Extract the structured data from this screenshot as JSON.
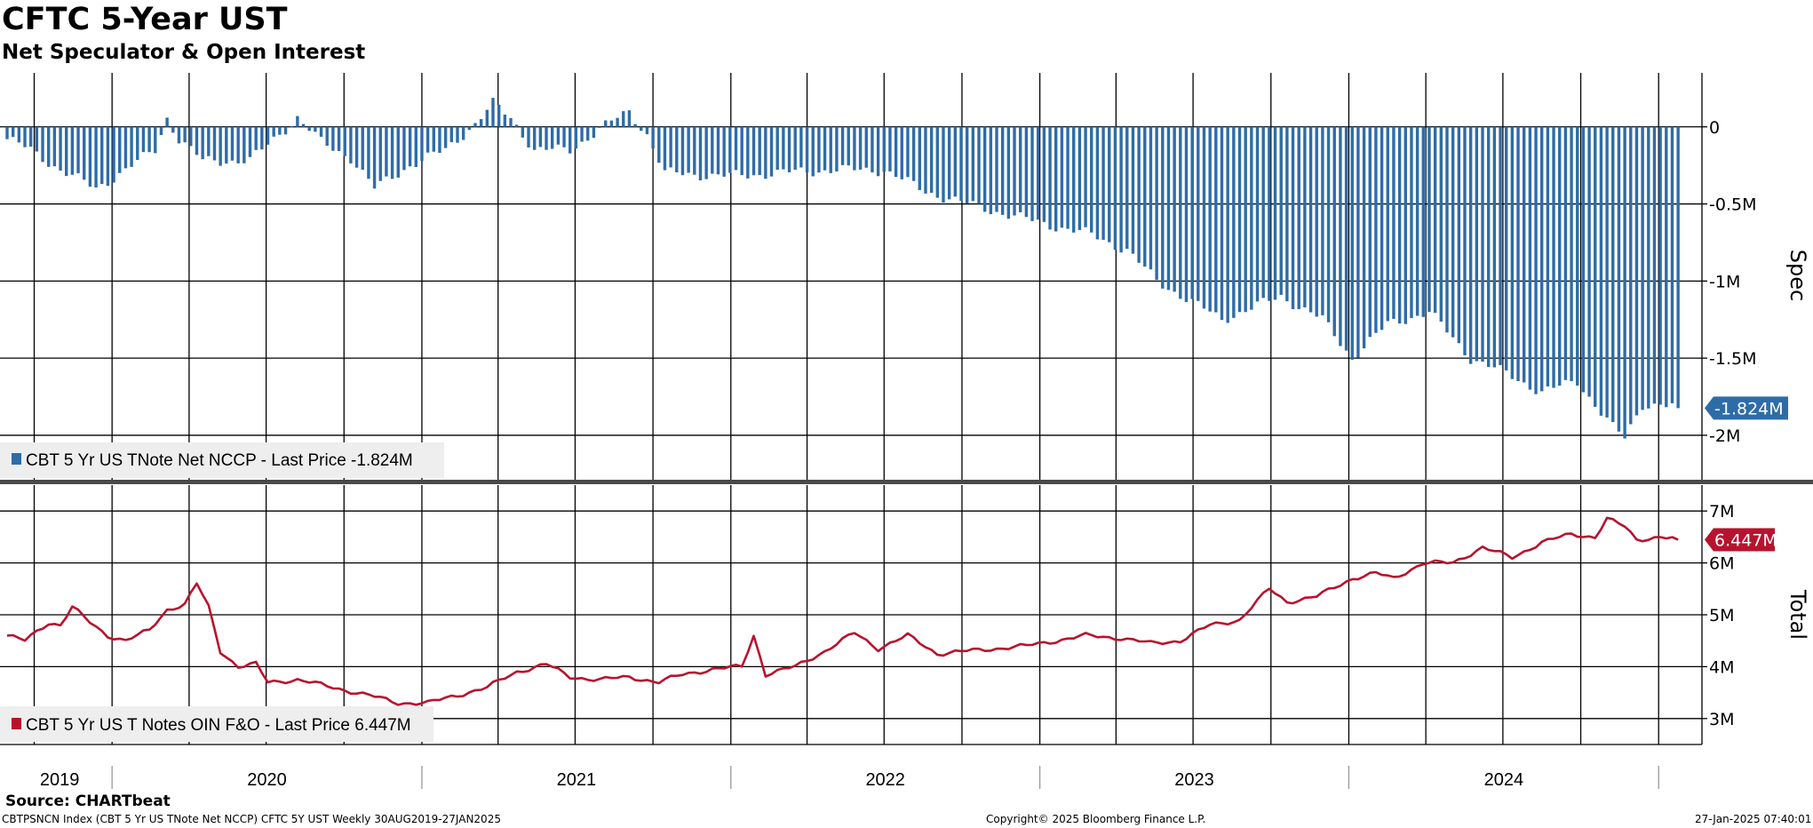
{
  "header": {
    "title": "CFTC 5-Year UST",
    "subtitle": "Net Speculator & Open Interest"
  },
  "footer": {
    "source": "Source: CHARTbeat",
    "ticker": "CBTPSNCN Index (CBT 5 Yr US TNote Net NCCP) CFTC 5Y UST  Weekly 30AUG2019-27JAN2025",
    "copyright": "Copyright© 2025 Bloomberg Finance L.P.",
    "timestamp": "27-Jan-2025 07:40:01"
  },
  "colors": {
    "spec_bar": "#2e6ca8",
    "total_line": "#b8132e",
    "grid": "#000000",
    "panel_divider": "#4a4a4a",
    "legend_bg": "#eeeeee"
  },
  "chart_data": [
    {
      "type": "bar",
      "name": "spec-panel",
      "axis_label": "Spec",
      "ylim": [
        -2.3,
        0.35
      ],
      "y_ticks": [
        0,
        -0.5,
        -1,
        -1.5,
        -2
      ],
      "y_tick_labels": [
        "0",
        "-0.5M",
        "-1M",
        "-1.5M",
        "-2M"
      ],
      "unit": "M",
      "legend": "CBT 5 Yr US TNote Net NCCP - Last Price -1.824M",
      "last_value_label": "-1.824M",
      "last_value": -1.824,
      "x_start": "2019-08-30",
      "x_end": "2025-01-27",
      "series": [
        {
          "frequency": "weekly",
          "anchors": [
            [
              "2019-08-30",
              -0.08
            ],
            [
              "2019-09-27",
              -0.15
            ],
            [
              "2019-11-01",
              -0.28
            ],
            [
              "2019-12-13",
              -0.4
            ],
            [
              "2020-01-17",
              -0.28
            ],
            [
              "2020-02-21",
              -0.15
            ],
            [
              "2020-03-06",
              0.06
            ],
            [
              "2020-03-20",
              -0.08
            ],
            [
              "2020-04-17",
              -0.22
            ],
            [
              "2020-06-12",
              -0.22
            ],
            [
              "2020-07-10",
              -0.08
            ],
            [
              "2020-08-07",
              0.06
            ],
            [
              "2020-09-04",
              -0.1
            ],
            [
              "2020-10-09",
              -0.2
            ],
            [
              "2020-11-06",
              -0.4
            ],
            [
              "2020-12-18",
              -0.25
            ],
            [
              "2021-01-29",
              -0.15
            ],
            [
              "2021-03-05",
              0.02
            ],
            [
              "2021-03-26",
              0.15
            ],
            [
              "2021-04-16",
              0.06
            ],
            [
              "2021-05-14",
              -0.15
            ],
            [
              "2021-06-25",
              -0.15
            ],
            [
              "2021-08-06",
              0.01
            ],
            [
              "2021-09-03",
              0.1
            ],
            [
              "2021-09-24",
              -0.05
            ],
            [
              "2021-10-15",
              -0.3
            ],
            [
              "2021-12-31",
              -0.32
            ],
            [
              "2022-02-25",
              -0.3
            ],
            [
              "2022-04-29",
              -0.28
            ],
            [
              "2022-07-01",
              -0.28
            ],
            [
              "2022-08-19",
              -0.42
            ],
            [
              "2022-10-07",
              -0.5
            ],
            [
              "2022-12-16",
              -0.6
            ],
            [
              "2023-03-03",
              -0.7
            ],
            [
              "2023-04-14",
              -0.8
            ],
            [
              "2023-05-19",
              -1.0
            ],
            [
              "2023-08-04",
              -1.25
            ],
            [
              "2023-10-13",
              -1.1
            ],
            [
              "2023-12-01",
              -1.25
            ],
            [
              "2024-01-05",
              -1.5
            ],
            [
              "2024-02-16",
              -1.28
            ],
            [
              "2024-04-05",
              -1.2
            ],
            [
              "2024-05-24",
              -1.5
            ],
            [
              "2024-07-05",
              -1.6
            ],
            [
              "2024-08-16",
              -1.72
            ],
            [
              "2024-09-27",
              -1.65
            ],
            [
              "2024-11-08",
              -1.95
            ],
            [
              "2024-11-22",
              -2.02
            ],
            [
              "2024-12-13",
              -1.8
            ],
            [
              "2025-01-03",
              -1.8
            ],
            [
              "2025-01-27",
              -1.824
            ]
          ]
        }
      ]
    },
    {
      "type": "line",
      "name": "total-panel",
      "axis_label": "Total",
      "ylim": [
        2.5,
        7.5
      ],
      "y_ticks": [
        7,
        6,
        5,
        4,
        3
      ],
      "y_tick_labels": [
        "7M",
        "6M",
        "5M",
        "4M",
        "3M"
      ],
      "unit": "M",
      "legend": "CBT 5 Yr US T Notes OIN F&O - Last Price 6.447M",
      "last_value_label": "6.447M",
      "last_value": 6.447,
      "x_start": "2019-08-30",
      "x_end": "2025-01-27",
      "series": [
        {
          "frequency": "weekly",
          "anchors": [
            [
              "2019-08-30",
              4.6
            ],
            [
              "2019-09-20",
              4.5
            ],
            [
              "2019-10-18",
              4.85
            ],
            [
              "2019-11-01",
              4.8
            ],
            [
              "2019-11-15",
              5.15
            ],
            [
              "2019-12-06",
              4.85
            ],
            [
              "2019-12-27",
              4.6
            ],
            [
              "2020-01-17",
              4.5
            ],
            [
              "2020-02-14",
              4.7
            ],
            [
              "2020-03-06",
              5.1
            ],
            [
              "2020-03-27",
              5.2
            ],
            [
              "2020-04-10",
              5.6
            ],
            [
              "2020-04-24",
              5.15
            ],
            [
              "2020-05-08",
              4.3
            ],
            [
              "2020-05-29",
              4.0
            ],
            [
              "2020-06-19",
              4.05
            ],
            [
              "2020-07-03",
              3.7
            ],
            [
              "2020-08-07",
              3.75
            ],
            [
              "2020-09-18",
              3.6
            ],
            [
              "2020-10-30",
              3.45
            ],
            [
              "2020-12-04",
              3.3
            ],
            [
              "2021-01-08",
              3.3
            ],
            [
              "2021-02-12",
              3.45
            ],
            [
              "2021-03-19",
              3.6
            ],
            [
              "2021-04-23",
              3.9
            ],
            [
              "2021-05-28",
              4.05
            ],
            [
              "2021-06-25",
              3.8
            ],
            [
              "2021-07-30",
              3.75
            ],
            [
              "2021-09-03",
              3.8
            ],
            [
              "2021-10-08",
              3.7
            ],
            [
              "2021-11-05",
              3.85
            ],
            [
              "2021-12-10",
              3.95
            ],
            [
              "2022-01-14",
              4.0
            ],
            [
              "2022-01-28",
              4.6
            ],
            [
              "2022-02-11",
              3.85
            ],
            [
              "2022-03-18",
              4.0
            ],
            [
              "2022-04-22",
              4.3
            ],
            [
              "2022-05-27",
              4.65
            ],
            [
              "2022-06-24",
              4.35
            ],
            [
              "2022-07-29",
              4.6
            ],
            [
              "2022-09-02",
              4.25
            ],
            [
              "2022-10-07",
              4.3
            ],
            [
              "2022-11-11",
              4.35
            ],
            [
              "2022-12-16",
              4.4
            ],
            [
              "2023-01-20",
              4.5
            ],
            [
              "2023-02-24",
              4.6
            ],
            [
              "2023-04-07",
              4.55
            ],
            [
              "2023-05-12",
              4.45
            ],
            [
              "2023-06-16",
              4.5
            ],
            [
              "2023-07-21",
              4.8
            ],
            [
              "2023-08-25",
              4.9
            ],
            [
              "2023-09-29",
              5.5
            ],
            [
              "2023-10-20",
              5.25
            ],
            [
              "2023-11-24",
              5.35
            ],
            [
              "2024-01-05",
              5.7
            ],
            [
              "2024-02-02",
              5.8
            ],
            [
              "2024-02-23",
              5.7
            ],
            [
              "2024-03-29",
              6.0
            ],
            [
              "2024-05-03",
              6.0
            ],
            [
              "2024-06-07",
              6.3
            ],
            [
              "2024-07-12",
              6.1
            ],
            [
              "2024-08-16",
              6.4
            ],
            [
              "2024-09-20",
              6.55
            ],
            [
              "2024-10-18",
              6.5
            ],
            [
              "2024-11-01",
              6.85
            ],
            [
              "2024-11-22",
              6.7
            ],
            [
              "2024-12-06",
              6.45
            ],
            [
              "2025-01-03",
              6.5
            ],
            [
              "2025-01-27",
              6.447
            ]
          ]
        }
      ]
    }
  ],
  "x_axis": {
    "year_labels": [
      "2019",
      "2020",
      "2021",
      "2022",
      "2023",
      "2024"
    ]
  }
}
